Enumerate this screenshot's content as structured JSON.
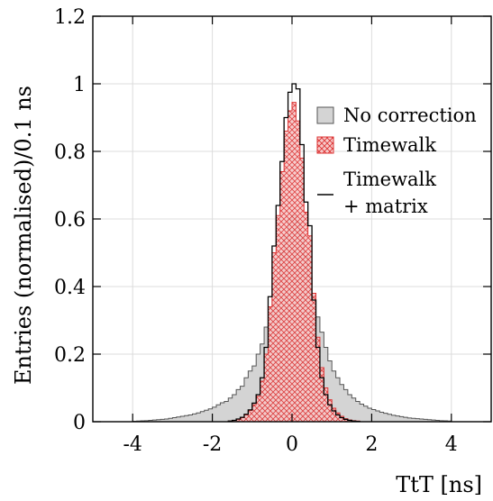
{
  "chart_data": {
    "type": "histogram",
    "xlabel": "TtT [ns]",
    "ylabel": "Entries (normalised)/0.1 ns",
    "xlim": [
      -5,
      5
    ],
    "ylim": [
      0,
      1.2
    ],
    "x_ticks": [
      -4,
      -2,
      0,
      2,
      4
    ],
    "x_tick_labels": [
      "-4",
      "-2",
      "0",
      "2",
      "4"
    ],
    "y_ticks": [
      0,
      0.2,
      0.4,
      0.6,
      0.8,
      1,
      1.2
    ],
    "y_tick_labels": [
      "0",
      "0.2",
      "0.4",
      "0.6",
      "0.8",
      "1",
      "1.2"
    ],
    "grid": true,
    "legend": "right",
    "bin_width": 0.1,
    "series": [
      {
        "name": "No correction",
        "style": "filled-gray",
        "color": "#d4d4d4",
        "edge": "#555555",
        "bins": [
          [
            -4.0,
            0.0015
          ],
          [
            -3.9,
            0.002
          ],
          [
            -3.8,
            0.0025
          ],
          [
            -3.7,
            0.003
          ],
          [
            -3.6,
            0.004
          ],
          [
            -3.5,
            0.005
          ],
          [
            -3.4,
            0.006
          ],
          [
            -3.3,
            0.007
          ],
          [
            -3.2,
            0.008
          ],
          [
            -3.1,
            0.01
          ],
          [
            -3.0,
            0.012
          ],
          [
            -2.9,
            0.014
          ],
          [
            -2.8,
            0.016
          ],
          [
            -2.7,
            0.018
          ],
          [
            -2.6,
            0.02
          ],
          [
            -2.5,
            0.023
          ],
          [
            -2.4,
            0.026
          ],
          [
            -2.3,
            0.03
          ],
          [
            -2.2,
            0.034
          ],
          [
            -2.1,
            0.038
          ],
          [
            -2.0,
            0.043
          ],
          [
            -1.9,
            0.05
          ],
          [
            -1.8,
            0.056
          ],
          [
            -1.7,
            0.06
          ],
          [
            -1.6,
            0.07
          ],
          [
            -1.5,
            0.08
          ],
          [
            -1.4,
            0.095
          ],
          [
            -1.3,
            0.105
          ],
          [
            -1.2,
            0.13
          ],
          [
            -1.1,
            0.15
          ],
          [
            -1.0,
            0.165
          ],
          [
            -0.9,
            0.2
          ],
          [
            -0.8,
            0.23
          ],
          [
            -0.7,
            0.28
          ],
          [
            -0.6,
            0.315
          ],
          [
            -0.5,
            0.37
          ],
          [
            -0.4,
            0.42
          ],
          [
            -0.3,
            0.5
          ],
          [
            -0.2,
            0.55
          ],
          [
            -0.1,
            0.6
          ],
          [
            0.0,
            0.61
          ],
          [
            0.1,
            0.59
          ],
          [
            0.2,
            0.55
          ],
          [
            0.3,
            0.49
          ],
          [
            0.4,
            0.43
          ],
          [
            0.5,
            0.37
          ],
          [
            0.6,
            0.31
          ],
          [
            0.7,
            0.265
          ],
          [
            0.8,
            0.22
          ],
          [
            0.9,
            0.18
          ],
          [
            1.0,
            0.15
          ],
          [
            1.1,
            0.13
          ],
          [
            1.2,
            0.11
          ],
          [
            1.3,
            0.095
          ],
          [
            1.4,
            0.08
          ],
          [
            1.5,
            0.07
          ],
          [
            1.6,
            0.06
          ],
          [
            1.7,
            0.052
          ],
          [
            1.8,
            0.046
          ],
          [
            1.9,
            0.04
          ],
          [
            2.0,
            0.036
          ],
          [
            2.1,
            0.032
          ],
          [
            2.2,
            0.028
          ],
          [
            2.3,
            0.025
          ],
          [
            2.4,
            0.022
          ],
          [
            2.5,
            0.019
          ],
          [
            2.6,
            0.017
          ],
          [
            2.7,
            0.015
          ],
          [
            2.8,
            0.013
          ],
          [
            2.9,
            0.011
          ],
          [
            3.0,
            0.01
          ],
          [
            3.1,
            0.009
          ],
          [
            3.2,
            0.008
          ],
          [
            3.3,
            0.007
          ],
          [
            3.4,
            0.006
          ],
          [
            3.5,
            0.005
          ],
          [
            3.6,
            0.004
          ],
          [
            3.7,
            0.003
          ],
          [
            3.8,
            0.0025
          ],
          [
            3.9,
            0.002
          ]
        ]
      },
      {
        "name": "Timewalk",
        "style": "red-crosshatch",
        "color": "#dd3333",
        "bins": [
          [
            -1.6,
            0.002
          ],
          [
            -1.5,
            0.004
          ],
          [
            -1.4,
            0.007
          ],
          [
            -1.3,
            0.012
          ],
          [
            -1.2,
            0.02
          ],
          [
            -1.1,
            0.033
          ],
          [
            -1.0,
            0.05
          ],
          [
            -0.9,
            0.075
          ],
          [
            -0.8,
            0.12
          ],
          [
            -0.7,
            0.2
          ],
          [
            -0.6,
            0.34
          ],
          [
            -0.5,
            0.5
          ],
          [
            -0.4,
            0.61
          ],
          [
            -0.3,
            0.74
          ],
          [
            -0.2,
            0.86
          ],
          [
            -0.1,
            0.92
          ],
          [
            0.0,
            0.945
          ],
          [
            0.1,
            0.89
          ],
          [
            0.2,
            0.78
          ],
          [
            0.3,
            0.62
          ],
          [
            0.4,
            0.55
          ],
          [
            0.5,
            0.38
          ],
          [
            0.6,
            0.25
          ],
          [
            0.7,
            0.16
          ],
          [
            0.8,
            0.1
          ],
          [
            0.9,
            0.065
          ],
          [
            1.0,
            0.04
          ],
          [
            1.1,
            0.026
          ],
          [
            1.2,
            0.016
          ],
          [
            1.3,
            0.009
          ],
          [
            1.4,
            0.005
          ],
          [
            1.5,
            0.003
          ],
          [
            1.6,
            0.002
          ]
        ]
      },
      {
        "name": "Timewalk\n+ matrix",
        "style": "black-step",
        "color": "#000000",
        "bins": [
          [
            -1.6,
            0.002
          ],
          [
            -1.5,
            0.004
          ],
          [
            -1.4,
            0.008
          ],
          [
            -1.3,
            0.013
          ],
          [
            -1.2,
            0.022
          ],
          [
            -1.1,
            0.035
          ],
          [
            -1.0,
            0.055
          ],
          [
            -0.9,
            0.08
          ],
          [
            -0.8,
            0.13
          ],
          [
            -0.7,
            0.22
          ],
          [
            -0.6,
            0.37
          ],
          [
            -0.5,
            0.52
          ],
          [
            -0.4,
            0.64
          ],
          [
            -0.3,
            0.77
          ],
          [
            -0.2,
            0.9
          ],
          [
            -0.1,
            0.975
          ],
          [
            0.0,
            1.0
          ],
          [
            0.1,
            0.985
          ],
          [
            0.2,
            0.82
          ],
          [
            0.3,
            0.65
          ],
          [
            0.4,
            0.58
          ],
          [
            0.5,
            0.36
          ],
          [
            0.6,
            0.22
          ],
          [
            0.7,
            0.13
          ],
          [
            0.8,
            0.08
          ],
          [
            0.9,
            0.05
          ],
          [
            1.0,
            0.032
          ],
          [
            1.1,
            0.02
          ],
          [
            1.2,
            0.012
          ],
          [
            1.3,
            0.007
          ],
          [
            1.4,
            0.004
          ],
          [
            1.5,
            0.002
          ],
          [
            1.6,
            0.001
          ]
        ]
      }
    ]
  }
}
